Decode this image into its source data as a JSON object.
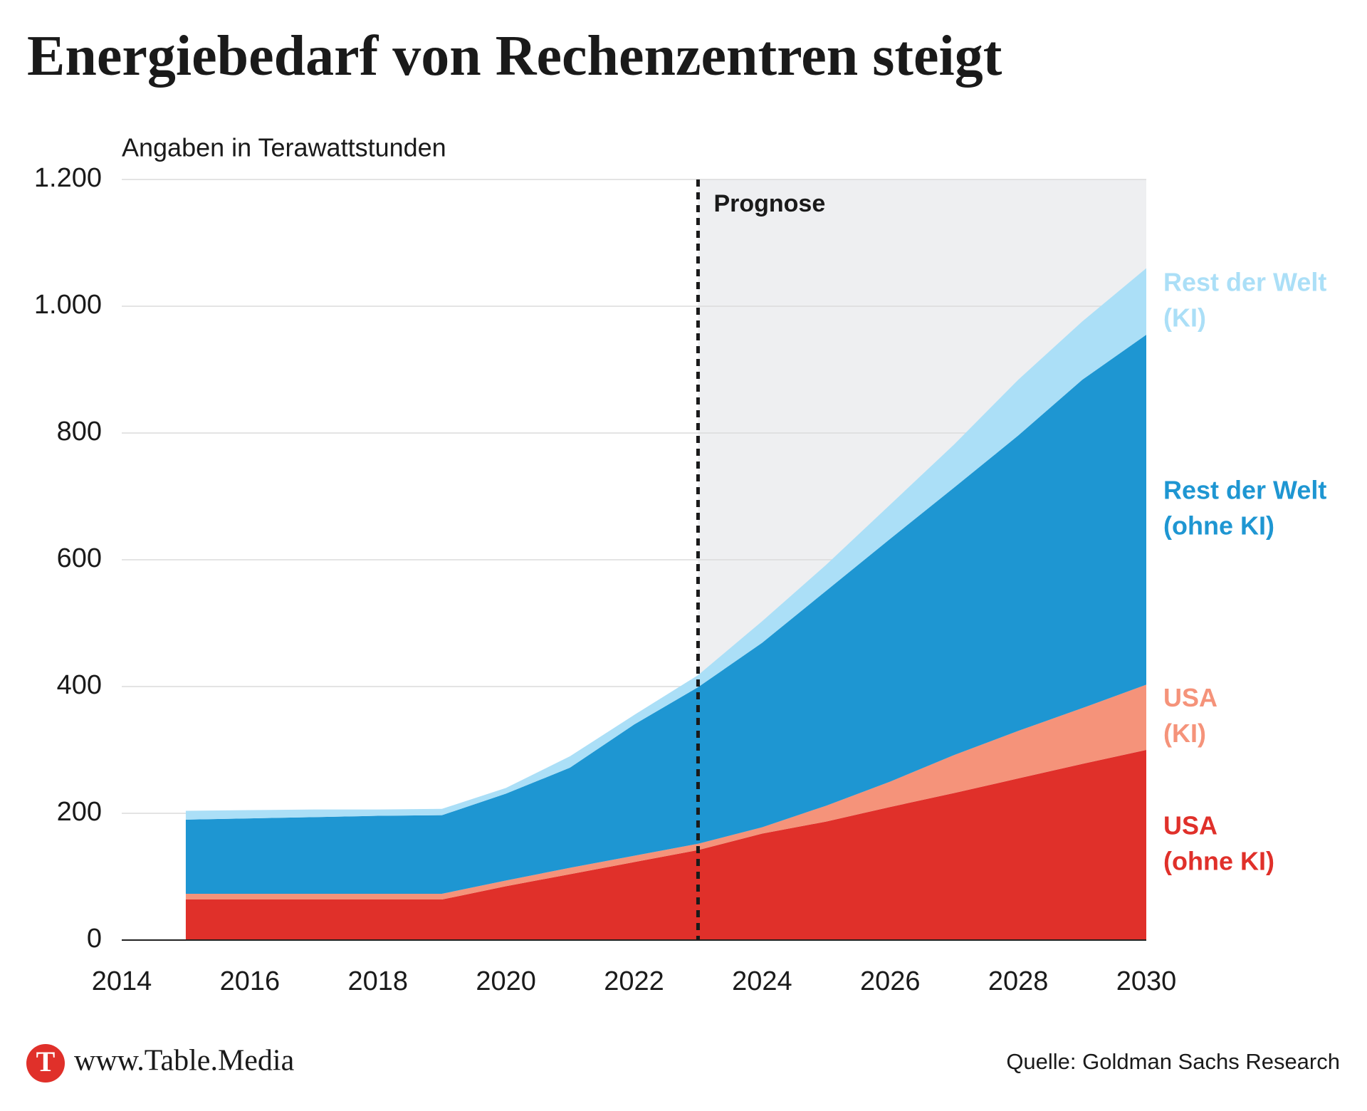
{
  "chart_data": {
    "type": "area",
    "title": "Energiebedarf von Rechenzentren steigt",
    "subtitle": "Angaben in Terawattstunden",
    "stacked": true,
    "x": [
      2015,
      2016,
      2017,
      2018,
      2019,
      2020,
      2021,
      2022,
      2023,
      2024,
      2025,
      2026,
      2027,
      2028,
      2029,
      2030
    ],
    "series": [
      {
        "name": "USA (ohne KI)",
        "color": "#e0302a",
        "values": [
          64,
          64,
          64,
          64,
          64,
          85,
          104,
          123,
          142,
          168,
          187,
          210,
          232,
          255,
          278,
          300
        ]
      },
      {
        "name": "USA (KI)",
        "color": "#f5937a",
        "values": [
          9,
          9,
          9,
          9,
          9,
          9,
          10,
          10,
          10,
          10,
          25,
          40,
          60,
          75,
          88,
          103
        ]
      },
      {
        "name": "Rest der Welt (ohne KI)",
        "color": "#1e96d2",
        "values": [
          117,
          119,
          121,
          123,
          124,
          137,
          158,
          207,
          247,
          291,
          339,
          383,
          422,
          466,
          518,
          552
        ]
      },
      {
        "name": "Rest der Welt (KI)",
        "color": "#abdff7",
        "values": [
          14,
          13,
          12,
          10,
          10,
          9,
          18,
          15,
          19,
          34,
          41,
          54,
          68,
          88,
          92,
          105
        ]
      }
    ],
    "xlim": [
      2014,
      2030
    ],
    "xticks": [
      2014,
      2016,
      2018,
      2020,
      2022,
      2024,
      2026,
      2028,
      2030
    ],
    "ylim": [
      0,
      1200
    ],
    "yticks": [
      0,
      200,
      400,
      600,
      800,
      {
        "value": 1000,
        "label": "1.000"
      },
      {
        "value": 1200,
        "label": "1.200"
      }
    ],
    "grid": true,
    "forecast_start": 2023,
    "forecast_label": "Prognose"
  },
  "footer": {
    "logo": "T",
    "brand": "www.Table.Media",
    "source": "Quelle: Goldman Sachs Research"
  }
}
